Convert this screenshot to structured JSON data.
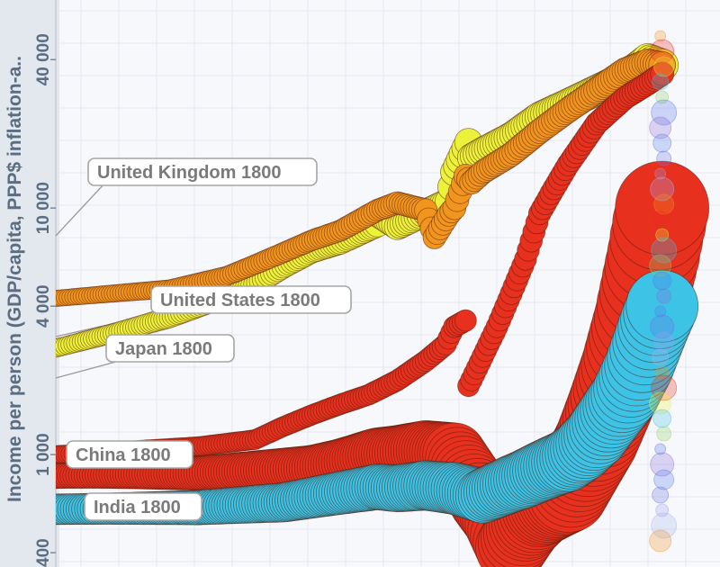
{
  "chart_data": {
    "type": "scatter",
    "title": "",
    "ylabel": "Income per person (GDP/capita, PPP$ inflation-a..",
    "yscale": "log",
    "ylim": [
      350,
      60000
    ],
    "xlim": [
      1800,
      2015
    ],
    "ytick_labels": [
      "40 000",
      "10 000",
      "4 000",
      "1 000",
      "400"
    ],
    "annotations": [
      {
        "text": "United Kingdom 1800",
        "series": "United Kingdom",
        "x": 1800,
        "y": 3200
      },
      {
        "text": "United States 1800",
        "series": "United States",
        "x": 1800,
        "y": 2000
      },
      {
        "text": "Japan 1800",
        "series": "Japan",
        "x": 1800,
        "y": 1600
      },
      {
        "text": "China 1800",
        "series": "China",
        "x": 1800,
        "y": 1000
      },
      {
        "text": "India 1800",
        "series": "India",
        "x": 1800,
        "y": 580
      }
    ],
    "series": [
      {
        "name": "United Kingdom",
        "color": "#ecf23a",
        "x": [
          1800,
          1820,
          1840,
          1860,
          1870,
          1880,
          1890,
          1900,
          1913,
          1914,
          1920,
          1930,
          1938,
          1940,
          1945,
          1946,
          1950,
          1960,
          1970,
          1980,
          1990,
          2000,
          2008,
          2013
        ],
        "y": [
          2700,
          3100,
          3600,
          4400,
          4900,
          5800,
          6700,
          7300,
          8600,
          9300,
          8400,
          9600,
          10600,
          14000,
          18500,
          16000,
          17000,
          19500,
          23500,
          26500,
          30000,
          34000,
          40000,
          38000
        ]
      },
      {
        "name": "United States",
        "color": "#f2951f",
        "x": [
          1800,
          1820,
          1840,
          1860,
          1870,
          1880,
          1890,
          1900,
          1913,
          1920,
          1930,
          1933,
          1938,
          1940,
          1944,
          1946,
          1950,
          1960,
          1970,
          1980,
          1990,
          2000,
          2008,
          2013
        ],
        "y": [
          4300,
          4500,
          4700,
          5300,
          5900,
          6600,
          7400,
          8100,
          9800,
          10500,
          9800,
          7600,
          9400,
          10000,
          13500,
          12700,
          14000,
          16500,
          20500,
          25000,
          30000,
          36000,
          39000,
          38000
        ]
      },
      {
        "name": "Japan",
        "color": "#e8301f",
        "x": [
          1800,
          1850,
          1870,
          1880,
          1890,
          1900,
          1910,
          1920,
          1930,
          1937,
          1940,
          1944,
          1945,
          1950,
          1955,
          1960,
          1965,
          1970,
          1975,
          1980,
          1990,
          2000,
          2008,
          2013
        ],
        "y": [
          1000,
          1080,
          1150,
          1300,
          1450,
          1600,
          1750,
          2000,
          2400,
          2800,
          3300,
          3500,
          1900,
          2500,
          3300,
          4500,
          6200,
          9500,
          12000,
          15000,
          22000,
          28000,
          32000,
          35000
        ]
      },
      {
        "name": "China",
        "color": "#e8301f",
        "x": [
          1800,
          1820,
          1850,
          1870,
          1890,
          1900,
          1913,
          1920,
          1930,
          1940,
          1950,
          1955,
          1960,
          1965,
          1970,
          1975,
          1980,
          1985,
          1990,
          1995,
          2000,
          2005,
          2010,
          2013
        ],
        "y": [
          820,
          830,
          840,
          860,
          880,
          920,
          1000,
          1010,
          1040,
          1000,
          650,
          550,
          420,
          520,
          600,
          650,
          700,
          900,
          1150,
          1600,
          2300,
          3600,
          6500,
          10000
        ]
      },
      {
        "name": "India",
        "color": "#3cc3e6",
        "x": [
          1800,
          1850,
          1880,
          1900,
          1913,
          1920,
          1930,
          1940,
          1950,
          1960,
          1965,
          1970,
          1975,
          1980,
          1985,
          1990,
          1995,
          2000,
          2005,
          2010,
          2013
        ],
        "y": [
          600,
          610,
          640,
          700,
          740,
          730,
          750,
          730,
          680,
          760,
          800,
          850,
          900,
          950,
          1050,
          1200,
          1450,
          1750,
          2300,
          3300,
          4000
        ]
      }
    ],
    "current_year_column": {
      "x": 2013,
      "colors": [
        "#f2951f",
        "#e8301f",
        "#ecf23a",
        "#3cc3e6",
        "#8fd16a",
        "#5577ee",
        "#8a6bd8",
        "#5a7de8",
        "#6a72e2",
        "#9aa0ea",
        "#a9b2f0"
      ]
    }
  }
}
